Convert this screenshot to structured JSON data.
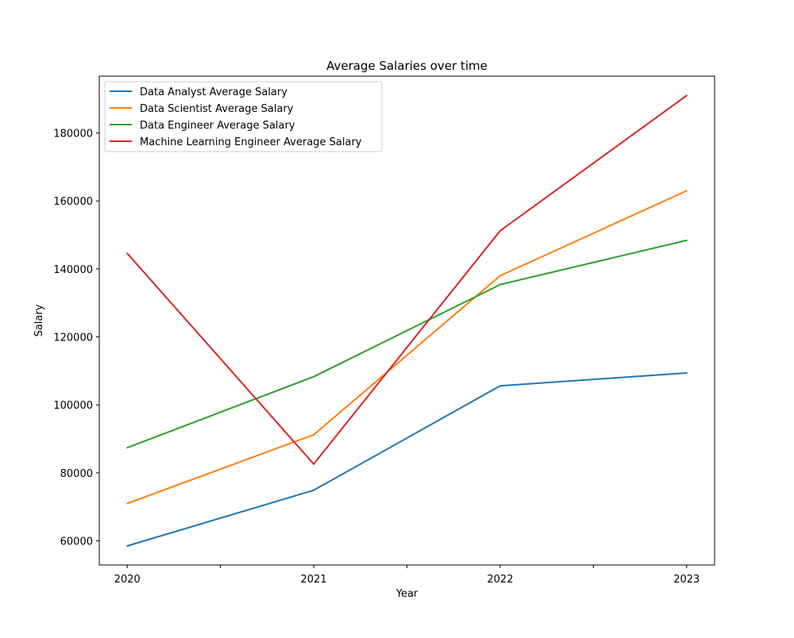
{
  "chart_data": {
    "type": "line",
    "title": "Average Salaries over time",
    "xlabel": "Year",
    "ylabel": "Salary",
    "x": [
      2020,
      2021,
      2022,
      2023
    ],
    "x_tick_labels": [
      "2020",
      "2021",
      "2022",
      "2023"
    ],
    "y_ticks": [
      60000,
      80000,
      100000,
      120000,
      140000,
      160000,
      180000
    ],
    "y_tick_labels": [
      "60000",
      "80000",
      "100000",
      "120000",
      "140000",
      "160000",
      "180000"
    ],
    "xlim": [
      2019.85,
      2023.15
    ],
    "ylim": [
      52900,
      196700
    ],
    "grid": false,
    "legend_position": "upper left",
    "series": [
      {
        "name": "Data Analyst Average Salary",
        "color": "#1f77b4",
        "values": [
          58500,
          74900,
          105600,
          109400
        ]
      },
      {
        "name": "Data Scientist Average Salary",
        "color": "#ff7f0e",
        "values": [
          71000,
          91200,
          138000,
          163000
        ]
      },
      {
        "name": "Data Engineer Average Salary",
        "color": "#2ca02c",
        "values": [
          87400,
          108300,
          135400,
          148400
        ]
      },
      {
        "name": "Machine Learning Engineer Average Salary",
        "color": "#d62728",
        "values": [
          144600,
          82600,
          151200,
          191000
        ]
      }
    ]
  }
}
